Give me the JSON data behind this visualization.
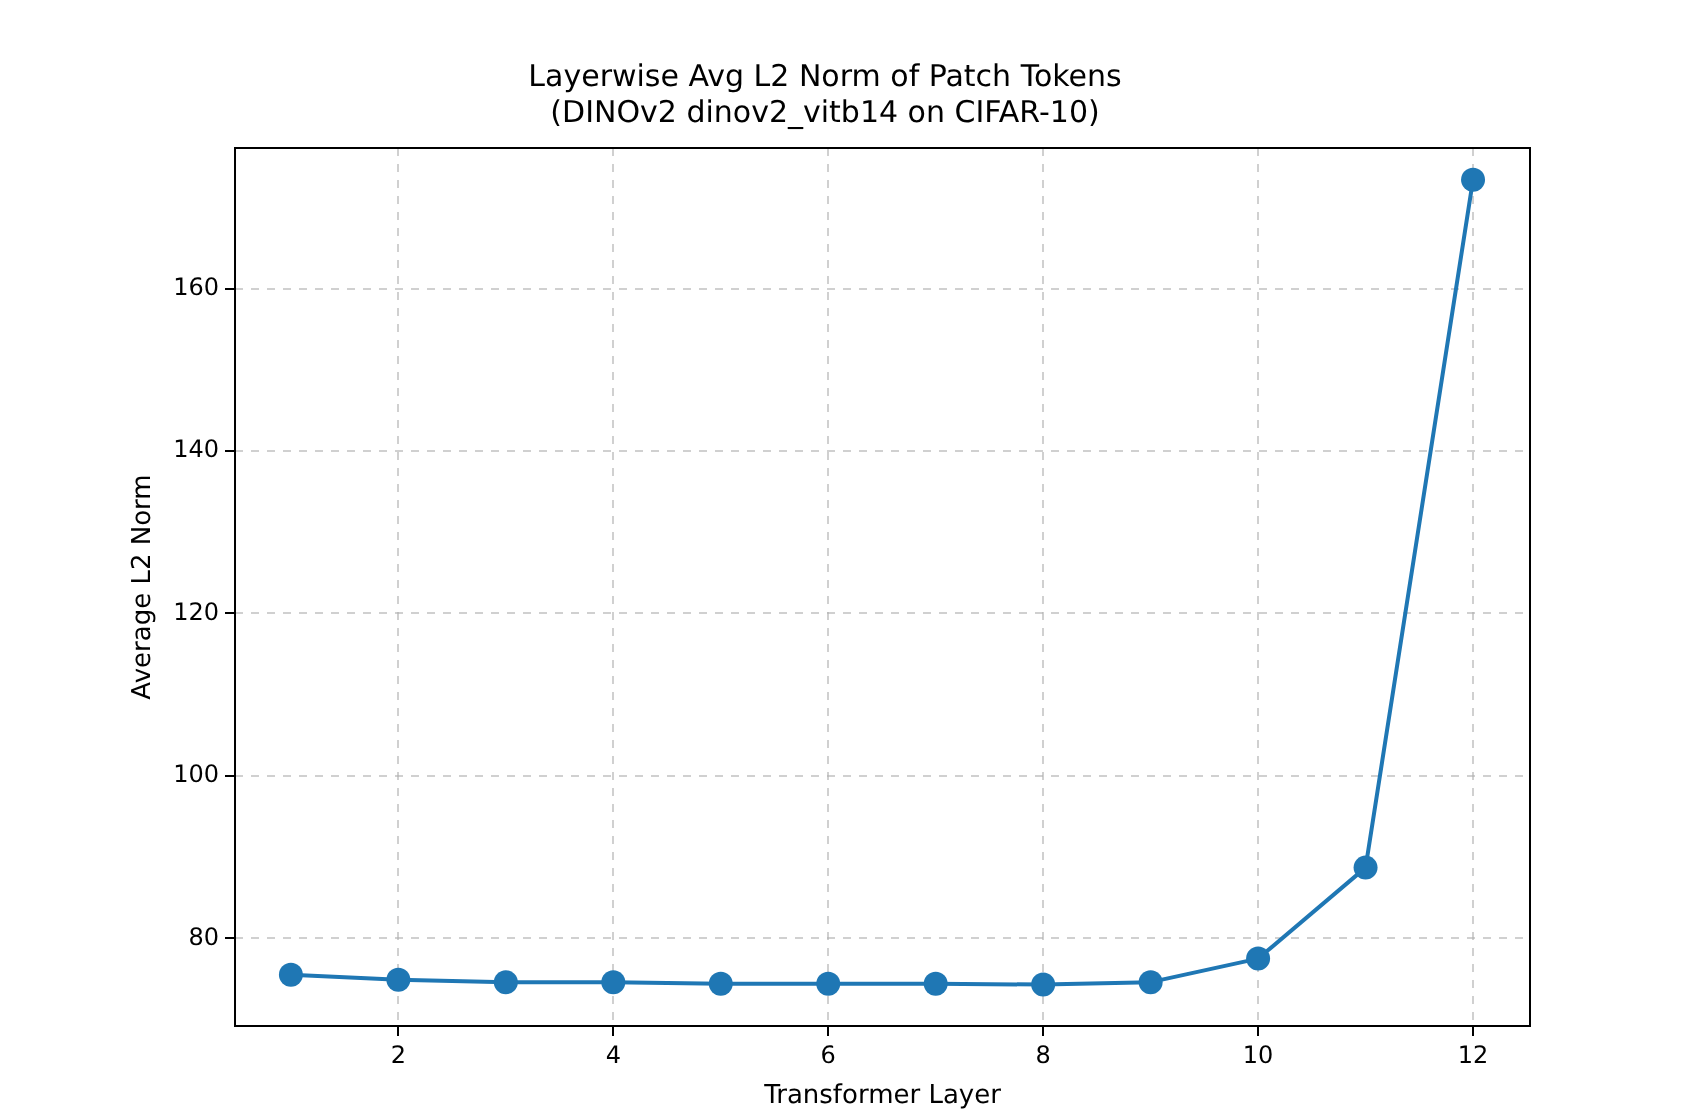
{
  "chart_data": {
    "type": "line",
    "title": "Layerwise Avg L2 Norm of Patch Tokens\n(DINOv2 dinov2_vitb14 on CIFAR-10)",
    "xlabel": "Transformer Layer",
    "ylabel": "Average L2 Norm",
    "x": [
      1,
      2,
      3,
      4,
      5,
      6,
      7,
      8,
      9,
      10,
      11,
      12
    ],
    "series": [
      {
        "color": "#1f77b4",
        "values": [
          75.5,
          74.9,
          74.6,
          74.6,
          74.4,
          74.4,
          74.4,
          74.3,
          74.6,
          77.5,
          88.7,
          173.4
        ]
      }
    ],
    "xlim": [
      0.48,
      12.53
    ],
    "xticks": [
      2,
      4,
      6,
      8,
      10,
      12
    ],
    "ylim": [
      69.2,
      177.3
    ],
    "yticks": [
      80,
      100,
      120,
      140,
      160
    ],
    "grid": true,
    "marker": "circle",
    "line_style": "solid"
  }
}
